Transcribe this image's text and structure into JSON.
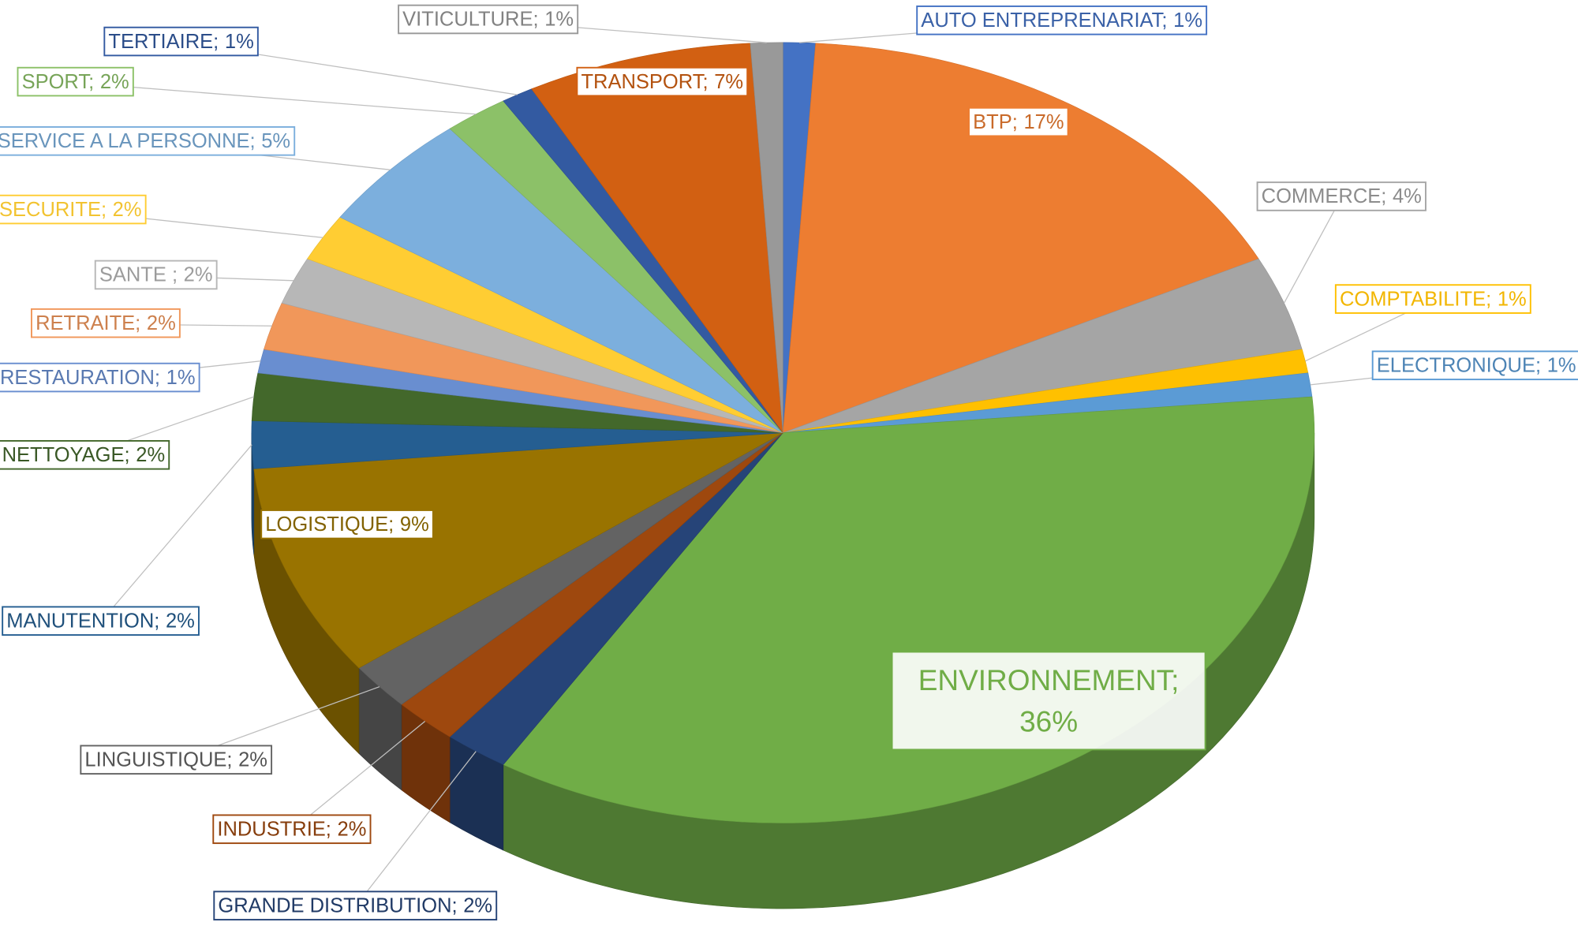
{
  "chart_data": {
    "type": "pie3d",
    "categories": [
      "AUTO ENTREPRENARIAT;",
      "BTP;",
      "COMMERCE;",
      "COMPTABILITE;",
      "ELECTRONIQUE;",
      "ENVIRONNEMENT;",
      "GRANDE DISTRIBUTION;",
      "INDUSTRIE;",
      "LINGUISTIQUE;",
      "LOGISTIQUE;",
      "MANUTENTION;",
      "NETTOYAGE;",
      "RESTAURATION;",
      "RETRAITE;",
      "SANTE ;",
      "SECURITE;",
      "SERVICE A LA PERSONNE;",
      "SPORT;",
      "TERTIAIRE;",
      "TRANSPORT;",
      "VITICULTURE;"
    ],
    "values": [
      1,
      17,
      4,
      1,
      1,
      36,
      2,
      2,
      2,
      9,
      2,
      2,
      1,
      2,
      2,
      2,
      5,
      2,
      1,
      7,
      1
    ],
    "value_labels": [
      "1%",
      "17%",
      "4%",
      "1%",
      "1%",
      "36%",
      "2%",
      "2%",
      "2%",
      "9%",
      "2%",
      "2%",
      "1%",
      "2%",
      "2%",
      "2%",
      "5%",
      "2%",
      "1%",
      "7%",
      "1%"
    ],
    "colors": [
      "#4472c4",
      "#ed7d31",
      "#a5a5a5",
      "#ffc000",
      "#5b9bd5",
      "#70ad47",
      "#264478",
      "#9e480e",
      "#636363",
      "#997300",
      "#255e91",
      "#43682b",
      "#698ed0",
      "#f1975a",
      "#b7b7b7",
      "#ffcd33",
      "#7cafdd",
      "#8cc168",
      "#335aa1",
      "#d26012",
      "#999999"
    ]
  }
}
